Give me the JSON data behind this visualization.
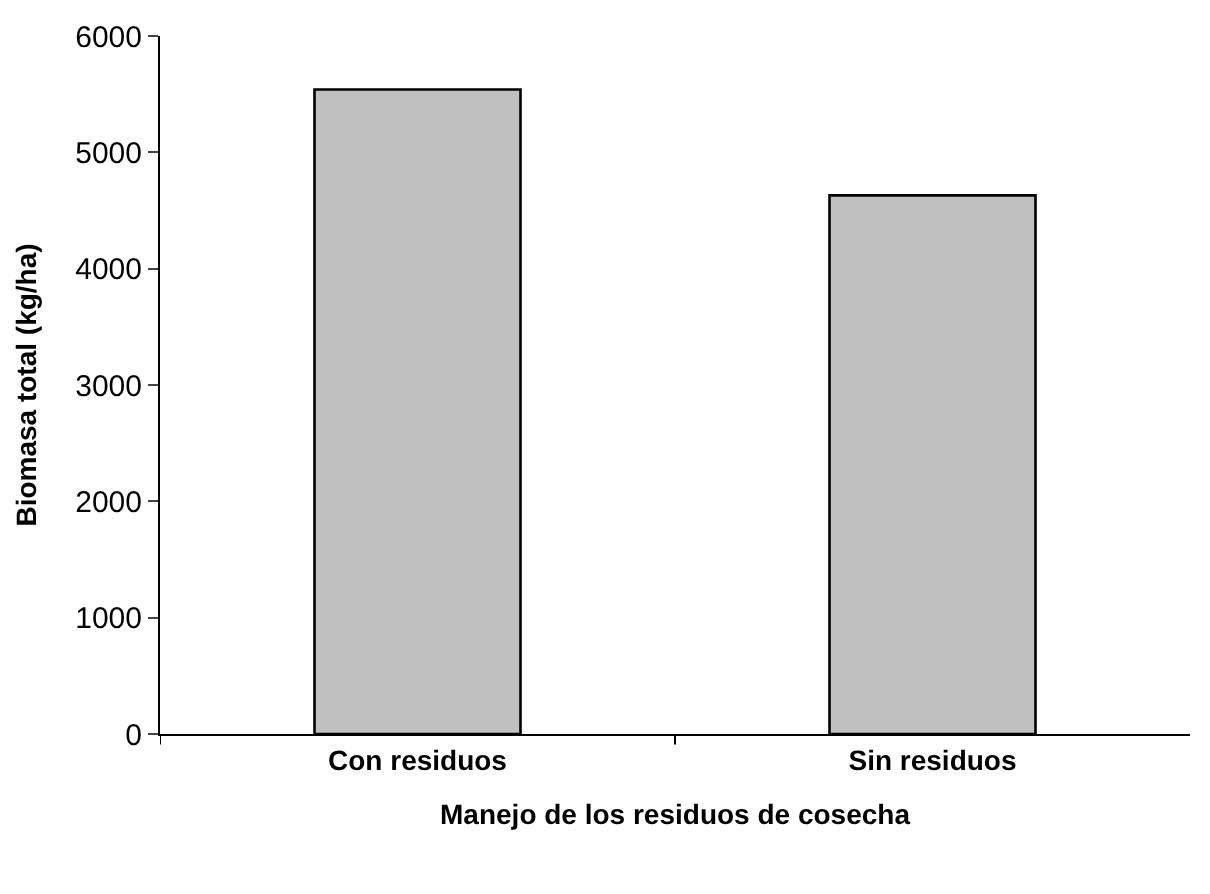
{
  "chart_data": {
    "type": "bar",
    "xlabel": "Manejo de los residuos de cosecha",
    "ylabel": "Biomasa total (kg/ha)",
    "categories": [
      "Con residuos",
      "Sin residuos"
    ],
    "series": [
      {
        "color": "#c0c0c0",
        "values": [
          5540,
          4630
        ]
      }
    ],
    "ylim": [
      0,
      6000
    ],
    "yticks": [
      0,
      1000,
      2000,
      3000,
      4000,
      5000,
      6000
    ]
  }
}
